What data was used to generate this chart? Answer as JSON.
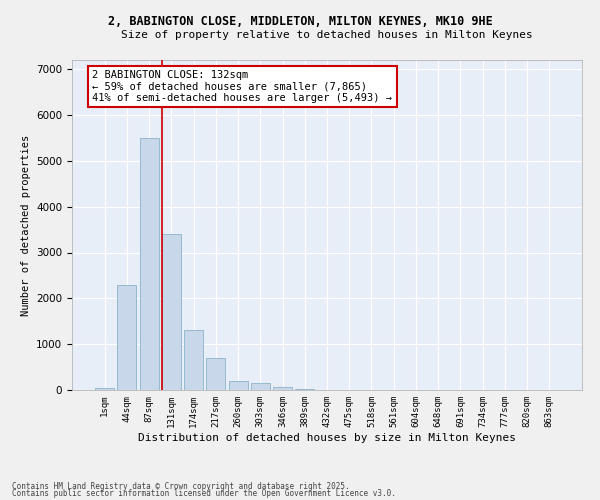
{
  "title1": "2, BABINGTON CLOSE, MIDDLETON, MILTON KEYNES, MK10 9HE",
  "title2": "Size of property relative to detached houses in Milton Keynes",
  "xlabel": "Distribution of detached houses by size in Milton Keynes",
  "ylabel": "Number of detached properties",
  "categories": [
    "1sqm",
    "44sqm",
    "87sqm",
    "131sqm",
    "174sqm",
    "217sqm",
    "260sqm",
    "303sqm",
    "346sqm",
    "389sqm",
    "432sqm",
    "475sqm",
    "518sqm",
    "561sqm",
    "604sqm",
    "648sqm",
    "691sqm",
    "734sqm",
    "777sqm",
    "820sqm",
    "863sqm"
  ],
  "values": [
    50,
    2300,
    5500,
    3400,
    1300,
    700,
    200,
    150,
    75,
    20,
    8,
    3,
    1,
    0,
    0,
    0,
    0,
    0,
    0,
    0,
    0
  ],
  "bar_color": "#c8d8ea",
  "bar_edge_color": "#8ab4cc",
  "background_color": "#e8eef8",
  "grid_color": "#ffffff",
  "vline_color": "#cc0000",
  "vline_x_index": 3,
  "annotation_text": "2 BABINGTON CLOSE: 132sqm\n← 59% of detached houses are smaller (7,865)\n41% of semi-detached houses are larger (5,493) →",
  "annotation_box_color": "#cc0000",
  "annotation_fill": "#ffffff",
  "footer1": "Contains HM Land Registry data © Crown copyright and database right 2025.",
  "footer2": "Contains public sector information licensed under the Open Government Licence v3.0.",
  "ylim": [
    0,
    7200
  ],
  "yticks": [
    0,
    1000,
    2000,
    3000,
    4000,
    5000,
    6000,
    7000
  ],
  "fig_bg": "#f0f0f0"
}
